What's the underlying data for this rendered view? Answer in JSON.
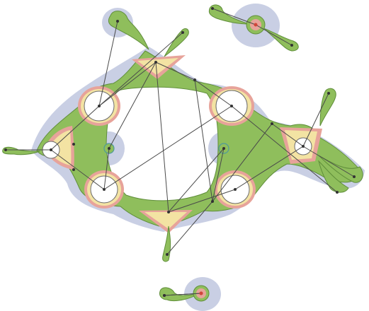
{
  "colors": {
    "halo": "#c9cfe4",
    "green": "#8fbe5c",
    "green_dark": "#5f8e3a",
    "pink": "#e7a39a",
    "yellow": "#f3e3a3",
    "white": "#ffffff",
    "edge": "#4a4a4a",
    "teal": "#4f9a9a",
    "red_dot": "#d0453a"
  },
  "diagram": {
    "nodes": [
      {
        "id": "n1",
        "label": ""
      },
      {
        "id": "n2",
        "label": ""
      },
      {
        "id": "n3",
        "label": ""
      },
      {
        "id": "n4",
        "label": ""
      },
      {
        "id": "n5",
        "label": ""
      },
      {
        "id": "n6",
        "label": ""
      },
      {
        "id": "n7",
        "label": ""
      },
      {
        "id": "n8",
        "label": ""
      },
      {
        "id": "n9",
        "label": ""
      },
      {
        "id": "n10",
        "label": ""
      },
      {
        "id": "n11",
        "label": ""
      },
      {
        "id": "n12",
        "label": ""
      },
      {
        "id": "n13",
        "label": ""
      },
      {
        "id": "n14",
        "label": ""
      },
      {
        "id": "n15",
        "label": ""
      },
      {
        "id": "n16",
        "label": ""
      },
      {
        "id": "n17",
        "label": ""
      },
      {
        "id": "n18",
        "label": ""
      },
      {
        "id": "n19",
        "label": ""
      },
      {
        "id": "n20",
        "label": ""
      },
      {
        "id": "n21",
        "label": ""
      },
      {
        "id": "n22",
        "label": ""
      },
      {
        "id": "n23",
        "label": ""
      },
      {
        "id": "n24",
        "label": ""
      },
      {
        "id": "n25",
        "label": ""
      },
      {
        "id": "n26",
        "label": ""
      },
      {
        "id": "n27",
        "label": ""
      },
      {
        "id": "n28",
        "label": ""
      },
      {
        "id": "n29",
        "label": ""
      }
    ],
    "edges": [
      [
        "n1",
        "n2"
      ],
      [
        "n2",
        "n3"
      ],
      [
        "n3",
        "n4"
      ],
      [
        "n4",
        "n5"
      ],
      [
        "n5",
        "n6"
      ],
      [
        "n6",
        "n1"
      ],
      [
        "n3",
        "n7"
      ],
      [
        "n7",
        "n8"
      ],
      [
        "n8",
        "n9"
      ],
      [
        "n9",
        "n10"
      ],
      [
        "n10",
        "n11"
      ],
      [
        "n11",
        "n4"
      ],
      [
        "n1",
        "n12"
      ],
      [
        "n2",
        "n13"
      ],
      [
        "n2",
        "n14"
      ],
      [
        "n9",
        "n15"
      ],
      [
        "n9",
        "n16"
      ],
      [
        "n5",
        "n17"
      ],
      [
        "n11",
        "n18"
      ],
      [
        "n19",
        "n20"
      ],
      [
        "n20",
        "n21"
      ],
      [
        "n22",
        "n23"
      ],
      [
        "n26",
        "n27"
      ],
      [
        "n3",
        "n24"
      ],
      [
        "n6",
        "n24"
      ],
      [
        "n7",
        "n25"
      ],
      [
        "n11",
        "n25"
      ]
    ]
  }
}
